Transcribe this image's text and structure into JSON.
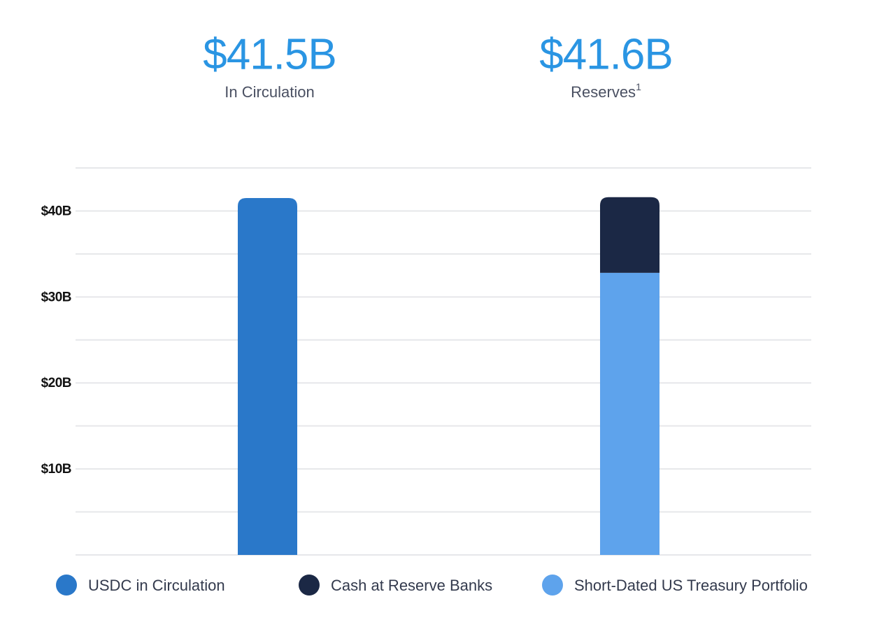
{
  "chart_data": {
    "type": "bar",
    "stacked": true,
    "headlines": [
      "$41.5B",
      "$41.6B"
    ],
    "categories": [
      "In Circulation",
      "Reserves"
    ],
    "category_notes": [
      null,
      "1"
    ],
    "series": [
      {
        "name": "USDC in Circulation",
        "color": "#2a78c9",
        "values": [
          41.5,
          null
        ]
      },
      {
        "name": "Cash at Reserve Banks",
        "color": "#1b2845",
        "values": [
          null,
          8.8
        ]
      },
      {
        "name": "Short-Dated US Treasury Portfolio",
        "color": "#5ea3ec",
        "values": [
          null,
          32.8
        ]
      }
    ],
    "ylim": [
      0,
      45
    ],
    "yticks": [
      {
        "value": 10,
        "label": "$10B"
      },
      {
        "value": 20,
        "label": "$20B"
      },
      {
        "value": 30,
        "label": "$30B"
      },
      {
        "value": 40,
        "label": "$40B"
      }
    ],
    "minor_yticks": [
      0,
      5,
      15,
      25,
      35,
      45
    ],
    "grid": true,
    "legend": "bottom"
  }
}
